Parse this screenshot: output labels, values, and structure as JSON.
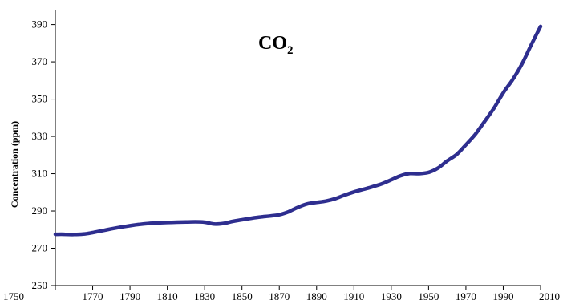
{
  "chart_data": {
    "type": "line",
    "title": "CO",
    "title_subscript": "2",
    "xlabel": "",
    "ylabel": "Concentration (ppm)",
    "xlim": [
      1750,
      2010
    ],
    "ylim": [
      250,
      398
    ],
    "grid": false,
    "legend": "none",
    "x_ticks": [
      "1750",
      "1770",
      "1790",
      "1810",
      "1830",
      "1850",
      "1870",
      "1890",
      "1910",
      "1930",
      "1950",
      "1970",
      "1990",
      "2010"
    ],
    "y_ticks": [
      "250",
      "270",
      "290",
      "310",
      "330",
      "350",
      "370",
      "390"
    ],
    "series": [
      {
        "color": "#2e2e8f",
        "x": [
          1750,
          1755,
          1760,
          1765,
          1770,
          1775,
          1780,
          1785,
          1790,
          1795,
          1800,
          1805,
          1810,
          1815,
          1820,
          1825,
          1830,
          1835,
          1840,
          1845,
          1850,
          1855,
          1860,
          1865,
          1870,
          1875,
          1880,
          1885,
          1890,
          1895,
          1900,
          1905,
          1910,
          1915,
          1920,
          1925,
          1930,
          1935,
          1940,
          1945,
          1950,
          1955,
          1960,
          1965,
          1970,
          1975,
          1980,
          1985,
          1990,
          1995,
          2000,
          2005,
          2010
        ],
        "values": [
          277.5,
          277.5,
          277.4,
          277.6,
          278.4,
          279.4,
          280.4,
          281.3,
          282.1,
          282.8,
          283.3,
          283.6,
          283.8,
          284.0,
          284.1,
          284.2,
          284.0,
          283.0,
          283.3,
          284.4,
          285.3,
          286.1,
          286.8,
          287.3,
          288.0,
          289.6,
          292.0,
          293.8,
          294.6,
          295.3,
          296.6,
          298.5,
          300.2,
          301.6,
          303.0,
          304.6,
          306.7,
          308.9,
          310.1,
          310.0,
          310.7,
          313.0,
          316.9,
          320.3,
          325.5,
          331.1,
          338.0,
          345.1,
          353.4,
          360.4,
          368.8,
          379.1,
          389.0
        ]
      }
    ]
  }
}
